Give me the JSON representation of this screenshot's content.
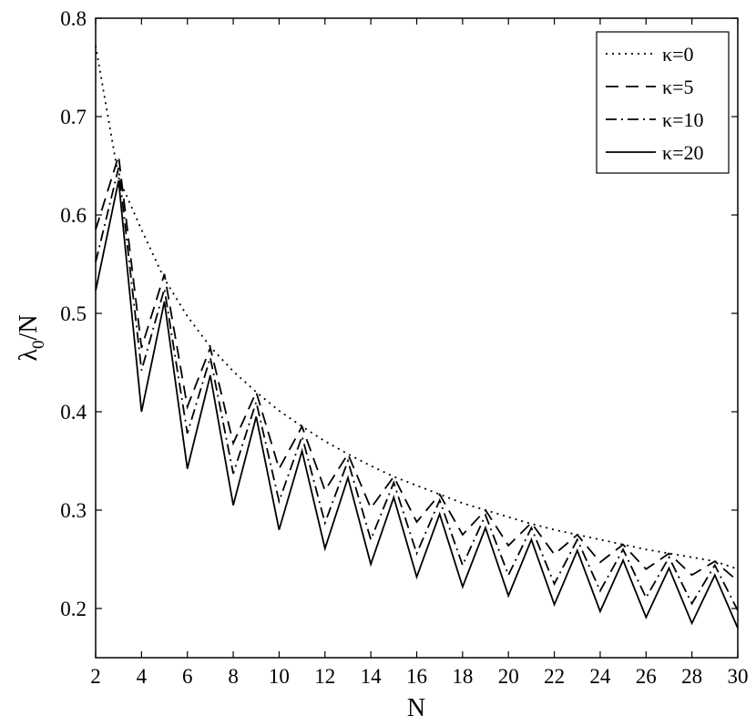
{
  "chart_data": {
    "type": "line",
    "title": "",
    "xlabel": "N",
    "ylabel_main": "λ",
    "ylabel_sub": "0",
    "ylabel_rest": "/N",
    "xlim": [
      2,
      30
    ],
    "ylim": [
      0.15,
      0.8
    ],
    "xticks": [
      2,
      4,
      6,
      8,
      10,
      12,
      14,
      16,
      18,
      20,
      22,
      24,
      26,
      28,
      30
    ],
    "yticks": [
      0.2,
      0.3,
      0.4,
      0.5,
      0.6,
      0.7,
      0.8
    ],
    "xtick_labels": [
      "2",
      "4",
      "6",
      "8",
      "10",
      "12",
      "14",
      "16",
      "18",
      "20",
      "22",
      "24",
      "26",
      "28",
      "30"
    ],
    "ytick_labels": [
      "0.2",
      "0.3",
      "0.4",
      "0.5",
      "0.6",
      "0.7",
      "0.8"
    ],
    "grid": false,
    "legend_position": "top-right",
    "x": [
      2,
      3,
      4,
      5,
      6,
      7,
      8,
      9,
      10,
      11,
      12,
      13,
      14,
      15,
      16,
      17,
      18,
      19,
      20,
      21,
      22,
      23,
      24,
      25,
      26,
      27,
      28,
      29,
      30
    ],
    "series": [
      {
        "name": "κ=0",
        "dash": "2,5",
        "values": [
          0.772,
          0.638,
          0.585,
          0.535,
          0.497,
          0.466,
          0.441,
          0.42,
          0.401,
          0.385,
          0.37,
          0.357,
          0.345,
          0.334,
          0.325,
          0.316,
          0.307,
          0.3,
          0.293,
          0.286,
          0.28,
          0.275,
          0.27,
          0.265,
          0.26,
          0.256,
          0.252,
          0.248,
          0.24
        ]
      },
      {
        "name": "κ=5",
        "dash": "14,8",
        "values": [
          0.585,
          0.66,
          0.465,
          0.54,
          0.405,
          0.465,
          0.368,
          0.42,
          0.342,
          0.385,
          0.32,
          0.357,
          0.302,
          0.334,
          0.288,
          0.316,
          0.275,
          0.3,
          0.264,
          0.287,
          0.255,
          0.275,
          0.247,
          0.265,
          0.24,
          0.256,
          0.234,
          0.248,
          0.228
        ]
      },
      {
        "name": "κ=10",
        "dash": "12,5,2,5",
        "values": [
          0.552,
          0.648,
          0.442,
          0.525,
          0.378,
          0.455,
          0.337,
          0.41,
          0.309,
          0.375,
          0.287,
          0.35,
          0.27,
          0.328,
          0.256,
          0.31,
          0.244,
          0.295,
          0.234,
          0.282,
          0.225,
          0.27,
          0.218,
          0.26,
          0.211,
          0.252,
          0.205,
          0.244,
          0.198
        ]
      },
      {
        "name": "κ=20",
        "dash": "",
        "values": [
          0.523,
          0.635,
          0.4,
          0.512,
          0.342,
          0.437,
          0.305,
          0.395,
          0.28,
          0.36,
          0.261,
          0.333,
          0.245,
          0.313,
          0.232,
          0.296,
          0.222,
          0.282,
          0.213,
          0.27,
          0.204,
          0.259,
          0.197,
          0.249,
          0.191,
          0.241,
          0.185,
          0.234,
          0.18
        ]
      }
    ]
  }
}
